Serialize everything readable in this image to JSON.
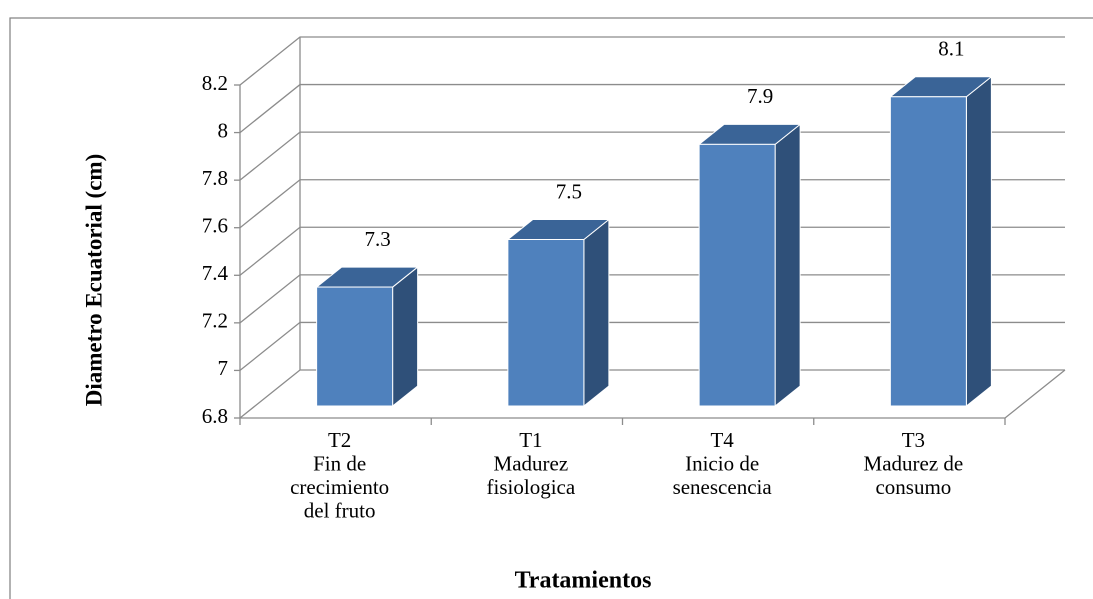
{
  "chart_data": {
    "type": "bar3d",
    "y_axis_label": "Diametro Ecuatorial (cm)",
    "x_axis_label": "Tratamientos",
    "categories": [
      [
        "T2",
        "Fin de",
        "crecimiento",
        "del fruto"
      ],
      [
        "T1",
        "Madurez",
        "fisiologica"
      ],
      [
        "T4",
        "Inicio de",
        "senescencia"
      ],
      [
        "T3",
        "Madurez de",
        "consumo"
      ]
    ],
    "values": [
      7.3,
      7.5,
      7.9,
      8.1
    ],
    "color": "#4f81bd",
    "ylim": [
      6.8,
      8.2
    ],
    "yticks": [
      6.8,
      7,
      7.2,
      7.4,
      7.6,
      7.8,
      8,
      8.2
    ],
    "grid": true
  }
}
